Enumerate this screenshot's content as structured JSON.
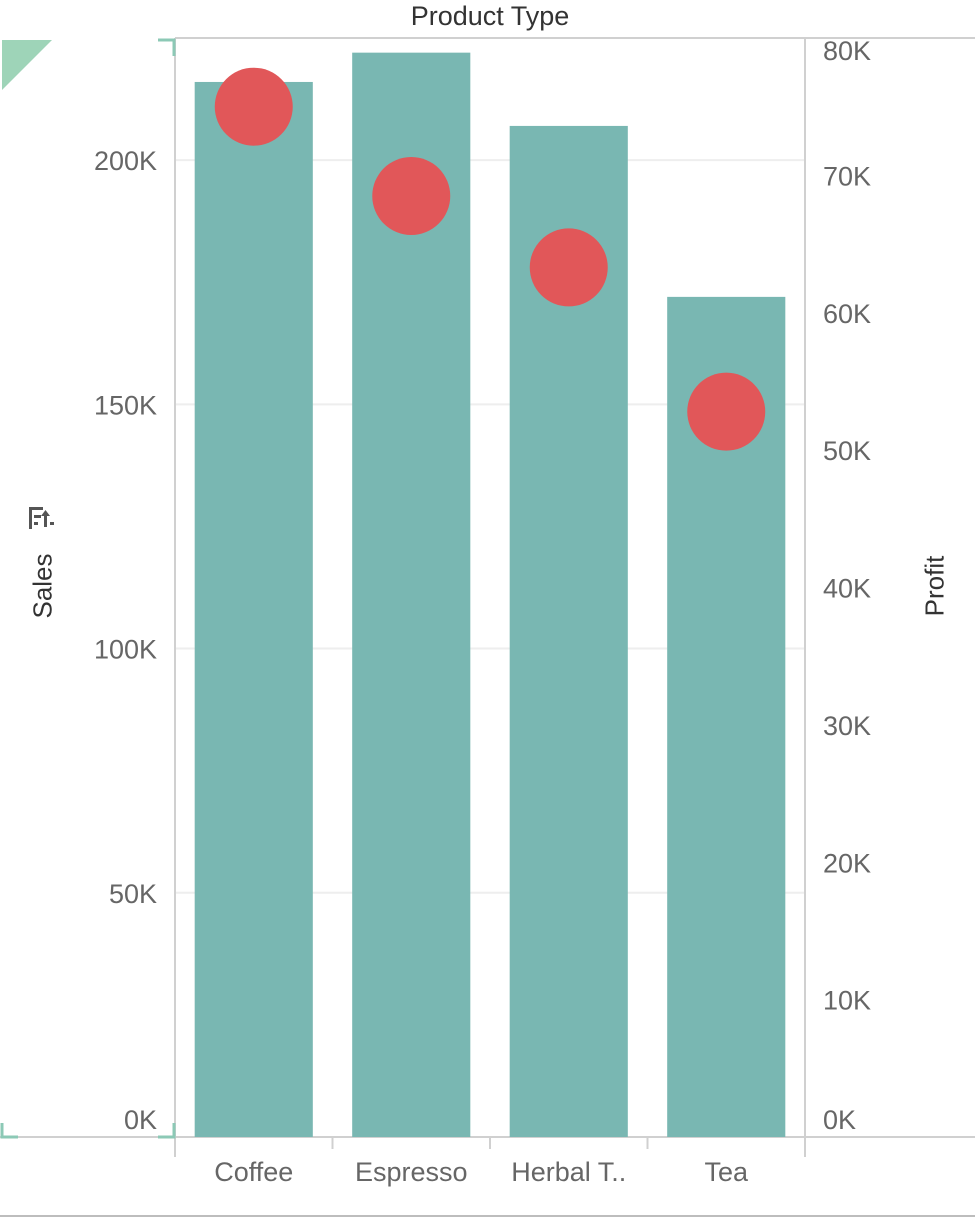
{
  "chart_data": {
    "type": "bar",
    "title": "Product Type",
    "categories": [
      "Coffee",
      "Espresso",
      "Herbal T..",
      "Tea"
    ],
    "series": [
      {
        "name": "Sales",
        "axis": "left",
        "mark": "bar",
        "values": [
          216000,
          222000,
          207000,
          172000
        ]
      },
      {
        "name": "Profit",
        "axis": "right",
        "mark": "circle",
        "values": [
          75000,
          68500,
          63300,
          52800
        ]
      }
    ],
    "ylabel": "Sales",
    "y2label": "Profit",
    "ylim": [
      0,
      225000
    ],
    "y2lim": [
      0,
      80000
    ],
    "yticks": [
      {
        "value": 0,
        "label": "0K"
      },
      {
        "value": 50000,
        "label": "50K"
      },
      {
        "value": 100000,
        "label": "100K"
      },
      {
        "value": 150000,
        "label": "150K"
      },
      {
        "value": 200000,
        "label": "200K"
      }
    ],
    "y2ticks": [
      {
        "value": 0,
        "label": "0K"
      },
      {
        "value": 10000,
        "label": "10K"
      },
      {
        "value": 20000,
        "label": "20K"
      },
      {
        "value": 30000,
        "label": "30K"
      },
      {
        "value": 40000,
        "label": "40K"
      },
      {
        "value": 50000,
        "label": "50K"
      },
      {
        "value": 60000,
        "label": "60K"
      },
      {
        "value": 70000,
        "label": "70K"
      },
      {
        "value": 80000,
        "label": "80K"
      }
    ],
    "grid": true,
    "colors": {
      "bar": "#79b7b2",
      "circle": "#e15759",
      "axis_text": "#666666",
      "gridline": "#eeeeee",
      "axis_line": "#d0d0d0"
    }
  }
}
